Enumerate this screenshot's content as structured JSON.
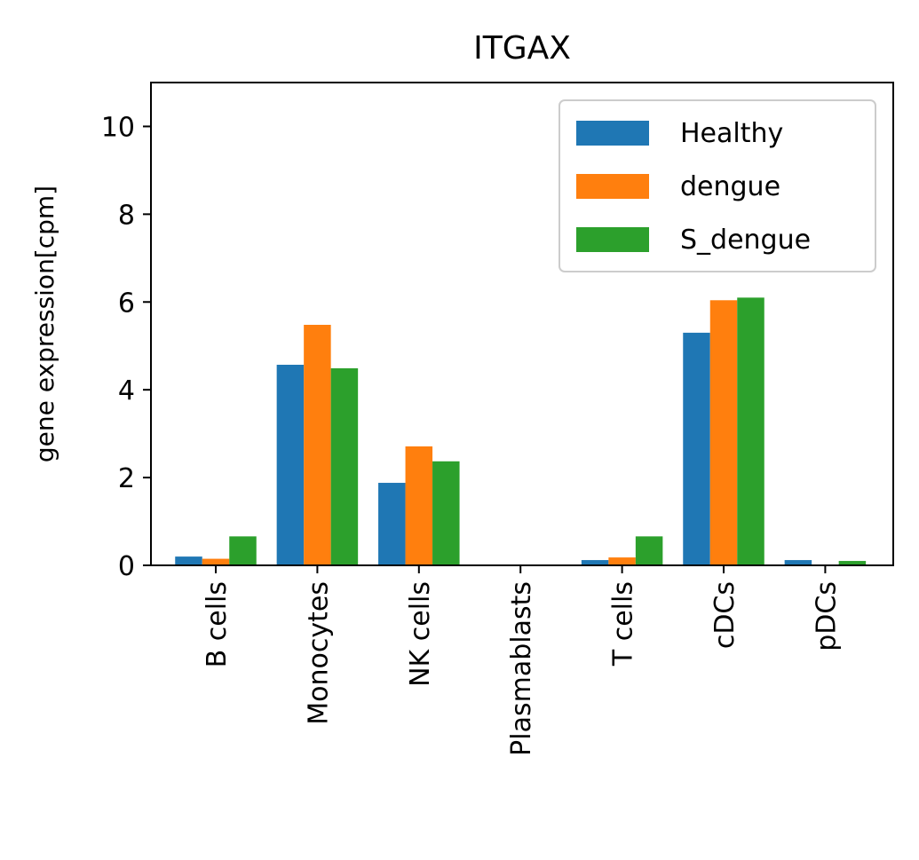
{
  "chart_data": {
    "type": "bar",
    "title": "ITGAX",
    "xlabel": "",
    "ylabel": "gene expression[cpm]",
    "ylim": [
      0,
      11
    ],
    "yticks": [
      0,
      2,
      4,
      6,
      8,
      10
    ],
    "categories": [
      "B cells",
      "Monocytes",
      "NK cells",
      "Plasmablasts",
      "T cells",
      "cDCs",
      "pDCs"
    ],
    "series": [
      {
        "name": "Healthy",
        "color": "#1f77b4",
        "values": [
          0.2,
          4.57,
          1.88,
          0.0,
          0.12,
          5.3,
          0.12
        ]
      },
      {
        "name": "dengue",
        "color": "#ff7f0e",
        "values": [
          0.15,
          5.48,
          2.71,
          0.0,
          0.18,
          6.04,
          0.0
        ]
      },
      {
        "name": "S_dengue",
        "color": "#2ca02c",
        "values": [
          0.66,
          4.49,
          2.37,
          0.0,
          0.66,
          6.1,
          0.1
        ]
      }
    ],
    "legend_position": "top-right",
    "grid": false
  }
}
